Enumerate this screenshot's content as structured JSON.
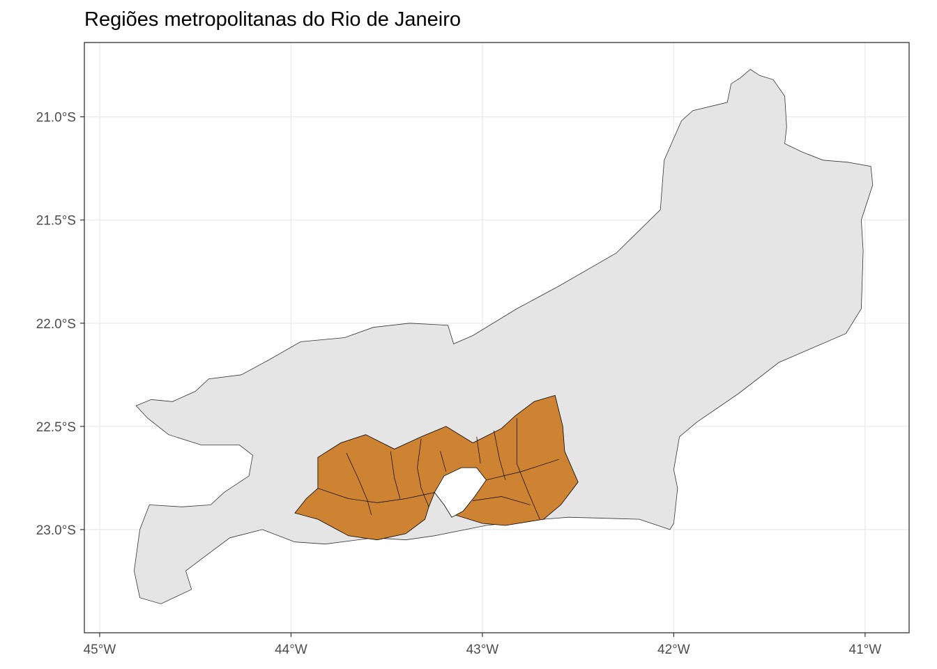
{
  "chart_data": {
    "type": "map",
    "title": "Regiões metropolitanas do Rio de Janeiro",
    "x_ticks": [
      {
        "lon": -45,
        "label": "45°W"
      },
      {
        "lon": -44,
        "label": "44°W"
      },
      {
        "lon": -43,
        "label": "43°W"
      },
      {
        "lon": -42,
        "label": "42°W"
      },
      {
        "lon": -41,
        "label": "41°W"
      }
    ],
    "y_ticks": [
      {
        "lat": -21.0,
        "label": "21.0°S"
      },
      {
        "lat": -21.5,
        "label": "21.5°S"
      },
      {
        "lat": -22.0,
        "label": "22.0°S"
      },
      {
        "lat": -22.5,
        "label": "22.5°S"
      },
      {
        "lat": -23.0,
        "label": "23.0°S"
      }
    ],
    "xlim": [
      -45.08,
      -40.77
    ],
    "ylim": [
      -23.5,
      -20.64
    ],
    "grid": true,
    "colors": {
      "state_fill": "#e5e5e5",
      "metro_fill": "#cd8331",
      "outline": "#333333",
      "grid": "#ebebeb",
      "panel_border": "#333333"
    },
    "state_outline": [
      [
        -44.81,
        -22.4
      ],
      [
        -44.73,
        -22.37
      ],
      [
        -44.62,
        -22.38
      ],
      [
        -44.5,
        -22.33
      ],
      [
        -44.43,
        -22.27
      ],
      [
        -44.26,
        -22.25
      ],
      [
        -44.12,
        -22.18
      ],
      [
        -43.95,
        -22.09
      ],
      [
        -43.72,
        -22.07
      ],
      [
        -43.57,
        -22.02
      ],
      [
        -43.38,
        -22.0
      ],
      [
        -43.18,
        -22.01
      ],
      [
        -43.15,
        -22.1
      ],
      [
        -43.05,
        -22.06
      ],
      [
        -42.82,
        -21.93
      ],
      [
        -42.6,
        -21.82
      ],
      [
        -42.3,
        -21.66
      ],
      [
        -42.07,
        -21.45
      ],
      [
        -42.05,
        -21.21
      ],
      [
        -41.96,
        -21.02
      ],
      [
        -41.9,
        -20.97
      ],
      [
        -41.81,
        -20.95
      ],
      [
        -41.72,
        -20.93
      ],
      [
        -41.7,
        -20.84
      ],
      [
        -41.65,
        -20.81
      ],
      [
        -41.6,
        -20.77
      ],
      [
        -41.55,
        -20.8
      ],
      [
        -41.48,
        -20.82
      ],
      [
        -41.42,
        -20.9
      ],
      [
        -41.41,
        -21.05
      ],
      [
        -41.42,
        -21.13
      ],
      [
        -41.33,
        -21.17
      ],
      [
        -41.22,
        -21.21
      ],
      [
        -41.09,
        -21.22
      ],
      [
        -40.97,
        -21.24
      ],
      [
        -40.96,
        -21.33
      ],
      [
        -41.02,
        -21.5
      ],
      [
        -41.01,
        -21.65
      ],
      [
        -41.02,
        -21.93
      ],
      [
        -41.1,
        -22.05
      ],
      [
        -41.45,
        -22.19
      ],
      [
        -41.66,
        -22.34
      ],
      [
        -41.88,
        -22.48
      ],
      [
        -41.97,
        -22.55
      ],
      [
        -42.0,
        -22.71
      ],
      [
        -41.98,
        -22.8
      ],
      [
        -42.0,
        -22.97
      ],
      [
        -42.02,
        -23.0
      ],
      [
        -42.18,
        -22.95
      ],
      [
        -42.55,
        -22.94
      ],
      [
        -42.68,
        -22.95
      ],
      [
        -42.98,
        -22.98
      ],
      [
        -43.25,
        -23.03
      ],
      [
        -43.4,
        -23.05
      ],
      [
        -43.57,
        -23.04
      ],
      [
        -43.82,
        -23.07
      ],
      [
        -43.98,
        -23.06
      ],
      [
        -44.15,
        -23.0
      ],
      [
        -44.32,
        -23.04
      ],
      [
        -44.45,
        -23.13
      ],
      [
        -44.55,
        -23.2
      ],
      [
        -44.52,
        -23.29
      ],
      [
        -44.68,
        -23.36
      ],
      [
        -44.79,
        -23.33
      ],
      [
        -44.82,
        -23.2
      ],
      [
        -44.79,
        -23.0
      ],
      [
        -44.74,
        -22.88
      ],
      [
        -44.57,
        -22.89
      ],
      [
        -44.42,
        -22.88
      ],
      [
        -44.35,
        -22.82
      ],
      [
        -44.22,
        -22.74
      ],
      [
        -44.2,
        -22.64
      ],
      [
        -44.27,
        -22.59
      ],
      [
        -44.47,
        -22.59
      ],
      [
        -44.64,
        -22.54
      ],
      [
        -44.75,
        -22.46
      ],
      [
        -44.81,
        -22.4
      ]
    ],
    "metro_outline": [
      [
        -43.98,
        -22.92
      ],
      [
        -43.92,
        -22.85
      ],
      [
        -43.86,
        -22.8
      ],
      [
        -43.86,
        -22.65
      ],
      [
        -43.74,
        -22.58
      ],
      [
        -43.61,
        -22.54
      ],
      [
        -43.46,
        -22.61
      ],
      [
        -43.32,
        -22.55
      ],
      [
        -43.19,
        -22.5
      ],
      [
        -43.05,
        -22.58
      ],
      [
        -42.9,
        -22.51
      ],
      [
        -42.83,
        -22.45
      ],
      [
        -42.73,
        -22.38
      ],
      [
        -42.62,
        -22.35
      ],
      [
        -42.58,
        -22.5
      ],
      [
        -42.57,
        -22.62
      ],
      [
        -42.5,
        -22.77
      ],
      [
        -42.59,
        -22.88
      ],
      [
        -42.68,
        -22.95
      ],
      [
        -42.88,
        -22.98
      ],
      [
        -43.0,
        -22.97
      ],
      [
        -43.14,
        -22.93
      ],
      [
        -43.18,
        -22.88
      ],
      [
        -43.2,
        -22.83
      ],
      [
        -43.25,
        -22.82
      ],
      [
        -43.28,
        -22.89
      ],
      [
        -43.3,
        -22.95
      ],
      [
        -43.4,
        -23.02
      ],
      [
        -43.55,
        -23.05
      ],
      [
        -43.7,
        -23.03
      ],
      [
        -43.86,
        -22.95
      ],
      [
        -43.98,
        -22.92
      ]
    ],
    "bay_outline": [
      [
        -43.25,
        -22.82
      ],
      [
        -43.2,
        -22.74
      ],
      [
        -43.11,
        -22.7
      ],
      [
        -43.03,
        -22.7
      ],
      [
        -42.98,
        -22.76
      ],
      [
        -43.04,
        -22.84
      ],
      [
        -43.1,
        -22.91
      ],
      [
        -43.16,
        -22.94
      ],
      [
        -43.2,
        -22.88
      ],
      [
        -43.25,
        -22.82
      ]
    ],
    "metro_boundaries": [
      [
        [
          -43.71,
          -22.63
        ],
        [
          -43.65,
          -22.75
        ],
        [
          -43.6,
          -22.86
        ],
        [
          -43.58,
          -22.93
        ]
      ],
      [
        [
          -43.48,
          -22.62
        ],
        [
          -43.46,
          -22.75
        ],
        [
          -43.43,
          -22.85
        ]
      ],
      [
        [
          -43.32,
          -22.56
        ],
        [
          -43.34,
          -22.7
        ],
        [
          -43.32,
          -22.8
        ],
        [
          -43.28,
          -22.89
        ]
      ],
      [
        [
          -43.86,
          -22.8
        ],
        [
          -43.7,
          -22.85
        ],
        [
          -43.55,
          -22.87
        ],
        [
          -43.4,
          -22.85
        ],
        [
          -43.25,
          -22.82
        ]
      ],
      [
        [
          -43.22,
          -22.62
        ],
        [
          -43.19,
          -22.72
        ]
      ],
      [
        [
          -43.03,
          -22.55
        ],
        [
          -43.01,
          -22.68
        ]
      ],
      [
        [
          -42.94,
          -22.52
        ],
        [
          -42.91,
          -22.66
        ],
        [
          -42.88,
          -22.76
        ]
      ],
      [
        [
          -42.82,
          -22.46
        ],
        [
          -42.82,
          -22.68
        ],
        [
          -42.76,
          -22.82
        ],
        [
          -42.7,
          -22.95
        ]
      ],
      [
        [
          -42.98,
          -22.76
        ],
        [
          -42.8,
          -22.72
        ],
        [
          -42.6,
          -22.66
        ]
      ],
      [
        [
          -43.05,
          -22.86
        ],
        [
          -42.9,
          -22.84
        ],
        [
          -42.75,
          -22.88
        ]
      ]
    ]
  }
}
